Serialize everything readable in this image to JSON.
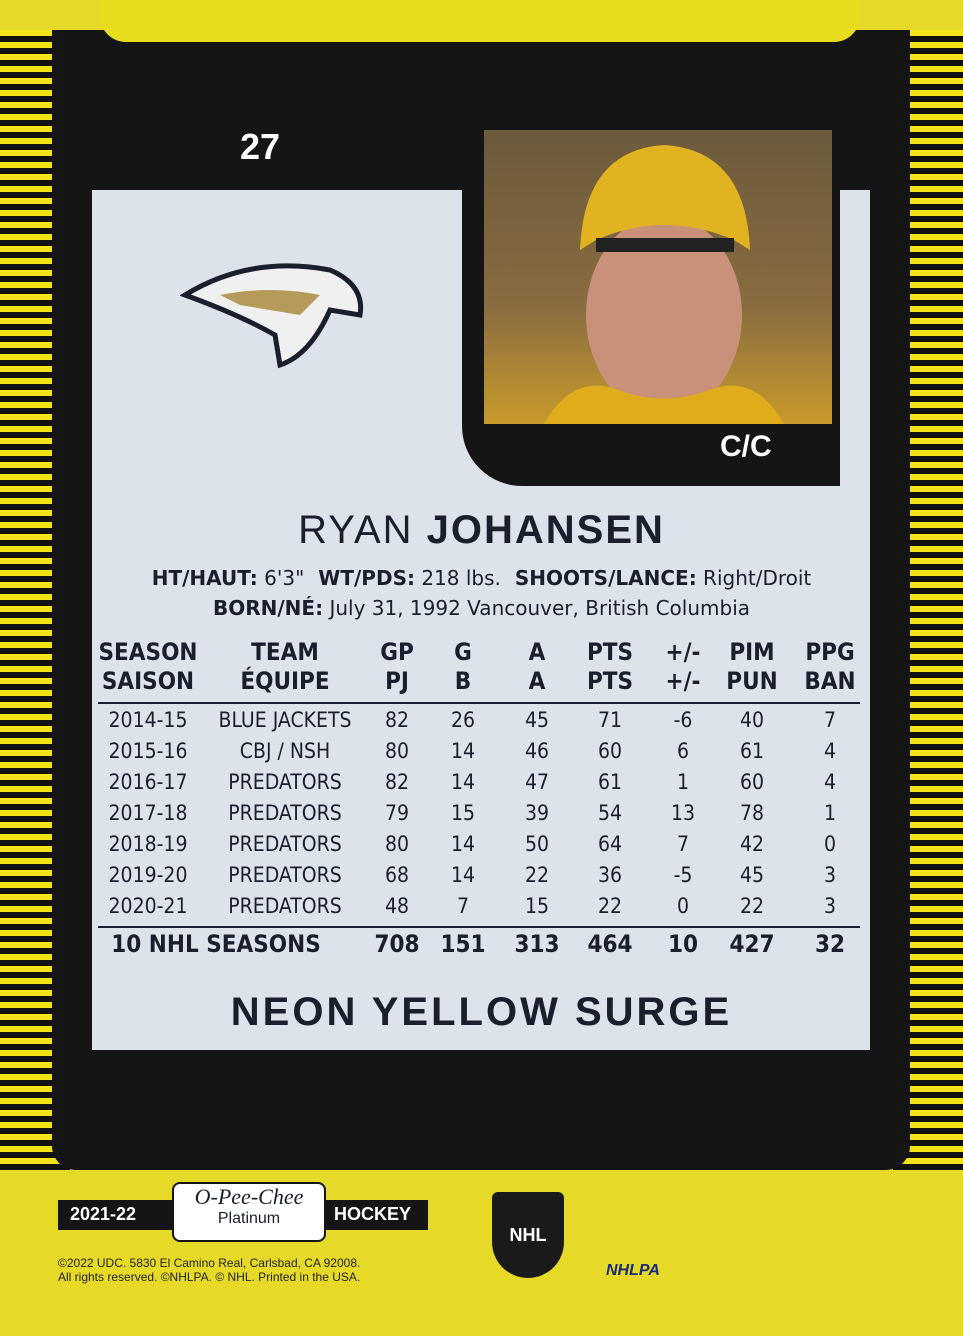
{
  "card_number": "27",
  "position": "C/C",
  "player": {
    "first_name": "RYAN",
    "last_name": "JOHANSEN"
  },
  "bio": [
    [
      {
        "label": "HT/HAUT:",
        "value": "6'3\""
      },
      {
        "label": "WT/PDS:",
        "value": "218 lbs."
      },
      {
        "label": "SHOOTS/LANCE:",
        "value": "Right/Droit"
      }
    ],
    [
      {
        "label": "BORN/NÉ:",
        "value": "July 31, 1992 Vancouver, British Columbia"
      }
    ]
  ],
  "table": {
    "headers": [
      [
        "SEASON",
        "SAISON"
      ],
      [
        "TEAM",
        "ÉQUIPE"
      ],
      [
        "GP",
        "PJ"
      ],
      [
        "G",
        "B"
      ],
      [
        "A",
        "A"
      ],
      [
        "PTS",
        "PTS"
      ],
      [
        "+/-",
        "+/-"
      ],
      [
        "PIM",
        "PUN"
      ],
      [
        "PPG",
        "BAN"
      ]
    ],
    "rows": [
      [
        "2014-15",
        "BLUE JACKETS",
        "82",
        "26",
        "45",
        "71",
        "-6",
        "40",
        "7"
      ],
      [
        "2015-16",
        "CBJ / NSH",
        "80",
        "14",
        "46",
        "60",
        "6",
        "61",
        "4"
      ],
      [
        "2016-17",
        "PREDATORS",
        "82",
        "14",
        "47",
        "61",
        "1",
        "60",
        "4"
      ],
      [
        "2017-18",
        "PREDATORS",
        "79",
        "15",
        "39",
        "54",
        "13",
        "78",
        "1"
      ],
      [
        "2018-19",
        "PREDATORS",
        "80",
        "14",
        "50",
        "64",
        "7",
        "42",
        "0"
      ],
      [
        "2019-20",
        "PREDATORS",
        "68",
        "14",
        "22",
        "36",
        "-5",
        "45",
        "3"
      ],
      [
        "2020-21",
        "PREDATORS",
        "48",
        "7",
        "15",
        "22",
        "0",
        "22",
        "3"
      ]
    ],
    "totals": [
      "10 NHL SEASONS",
      "708",
      "151",
      "313",
      "464",
      "10",
      "427",
      "32"
    ]
  },
  "parallel": "NEON YELLOW SURGE",
  "footer": {
    "season": "2021-22",
    "brand": "O-Pee-Chee",
    "sub_brand": "Platinum",
    "sport": "HOCKEY",
    "copyright": [
      "©2022 UDC. 5830 El Camino Real, Carlsbad, CA 92008.",
      "All rights reserved. ©NHLPA. © NHL. Printed in the USA."
    ],
    "logos": [
      "NHL",
      "NHLPA"
    ]
  }
}
